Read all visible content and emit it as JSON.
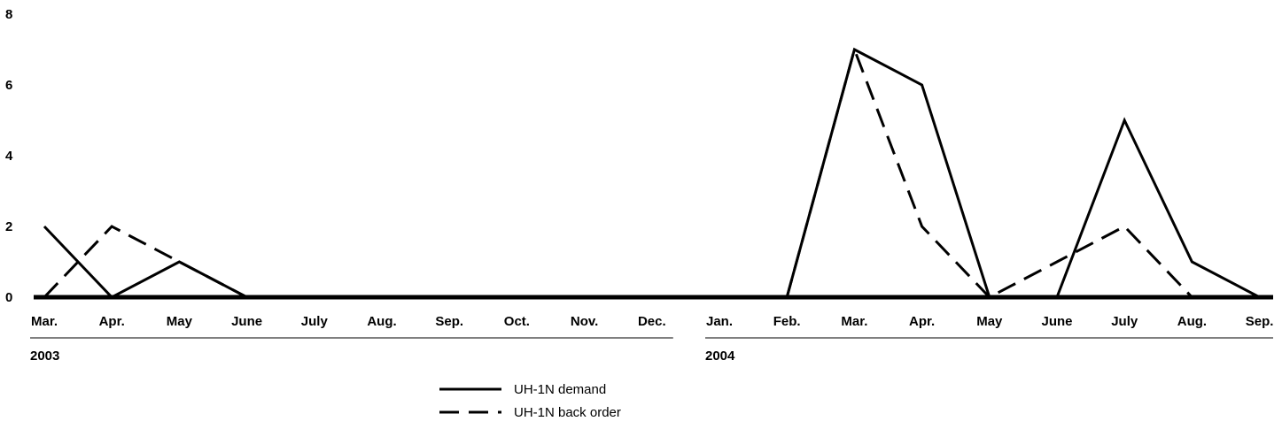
{
  "chart_data": {
    "type": "line",
    "title": "",
    "xlabel": "",
    "ylabel": "",
    "ylim": [
      0,
      8
    ],
    "yticks": [
      "0",
      "2",
      "4",
      "6",
      "8"
    ],
    "categories": [
      "Mar.",
      "Apr.",
      "May",
      "June",
      "July",
      "Aug.",
      "Sep.",
      "Oct.",
      "Nov.",
      "Dec.",
      "Jan.",
      "Feb.",
      "Mar.",
      "Apr.",
      "May",
      "June",
      "July",
      "Aug.",
      "Sep."
    ],
    "year_groups": [
      {
        "label": "2003",
        "start": 0,
        "end": 9
      },
      {
        "label": "2004",
        "start": 10,
        "end": 18
      }
    ],
    "series": [
      {
        "name": "UH-1N demand",
        "style": "solid",
        "values": [
          2,
          0,
          1,
          0,
          0,
          0,
          0,
          0,
          0,
          0,
          0,
          0,
          7,
          6,
          0,
          0,
          5,
          1,
          0
        ]
      },
      {
        "name": "UH-1N back order",
        "style": "dashed",
        "values": [
          0,
          2,
          1,
          0,
          0,
          0,
          0,
          0,
          0,
          0,
          0,
          0,
          7,
          2,
          0,
          1,
          2,
          0,
          0
        ]
      }
    ],
    "grid": false,
    "legend_position": "bottom-center",
    "line_color": "#000000"
  }
}
